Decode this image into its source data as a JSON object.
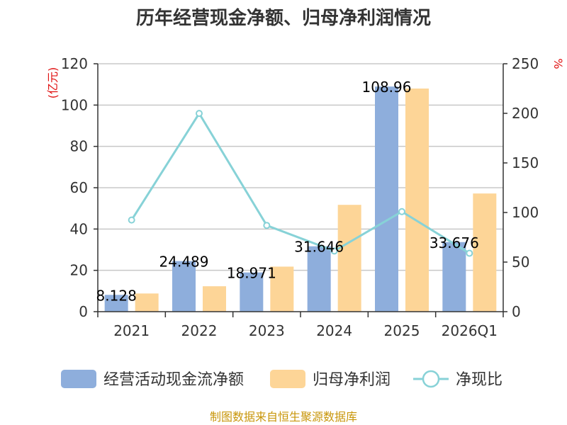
{
  "chart_data": {
    "type": "bar",
    "title": "历年经营现金净额、归母净利润情况",
    "categories": [
      "2021",
      "2022",
      "2023",
      "2024",
      "2025",
      "2026Q1"
    ],
    "y_left": {
      "unit": "(亿元)",
      "ylim": [
        0,
        120
      ],
      "ticks": [
        "0",
        "20",
        "40",
        "60",
        "80",
        "100",
        "120"
      ]
    },
    "y_right": {
      "unit": "%",
      "ylim": [
        0,
        250
      ],
      "ticks": [
        "0",
        "50",
        "100",
        "150",
        "200",
        "250"
      ]
    },
    "grid": true,
    "legend_position": "bottom",
    "series": [
      {
        "name": "经营活动现金流净额",
        "kind": "bar",
        "axis": "left",
        "color": "#8eaedc",
        "values": [
          8.128,
          24.489,
          18.971,
          31.646,
          108.96,
          33.676
        ],
        "labels": [
          "8.128",
          "24.489",
          "18.971",
          "31.646",
          "108.96",
          "33.676"
        ]
      },
      {
        "name": "归母净利润",
        "kind": "bar",
        "axis": "left",
        "color": "#fdd597",
        "values": [
          8.8,
          12.3,
          21.8,
          51.7,
          108.0,
          57.2
        ]
      },
      {
        "name": "净现比",
        "kind": "line",
        "axis": "right",
        "color": "#87d2d7",
        "values": [
          92.4,
          199.9,
          87.0,
          61.2,
          100.9,
          58.9
        ]
      }
    ]
  },
  "source_text": "制图数据来自恒生聚源数据库"
}
